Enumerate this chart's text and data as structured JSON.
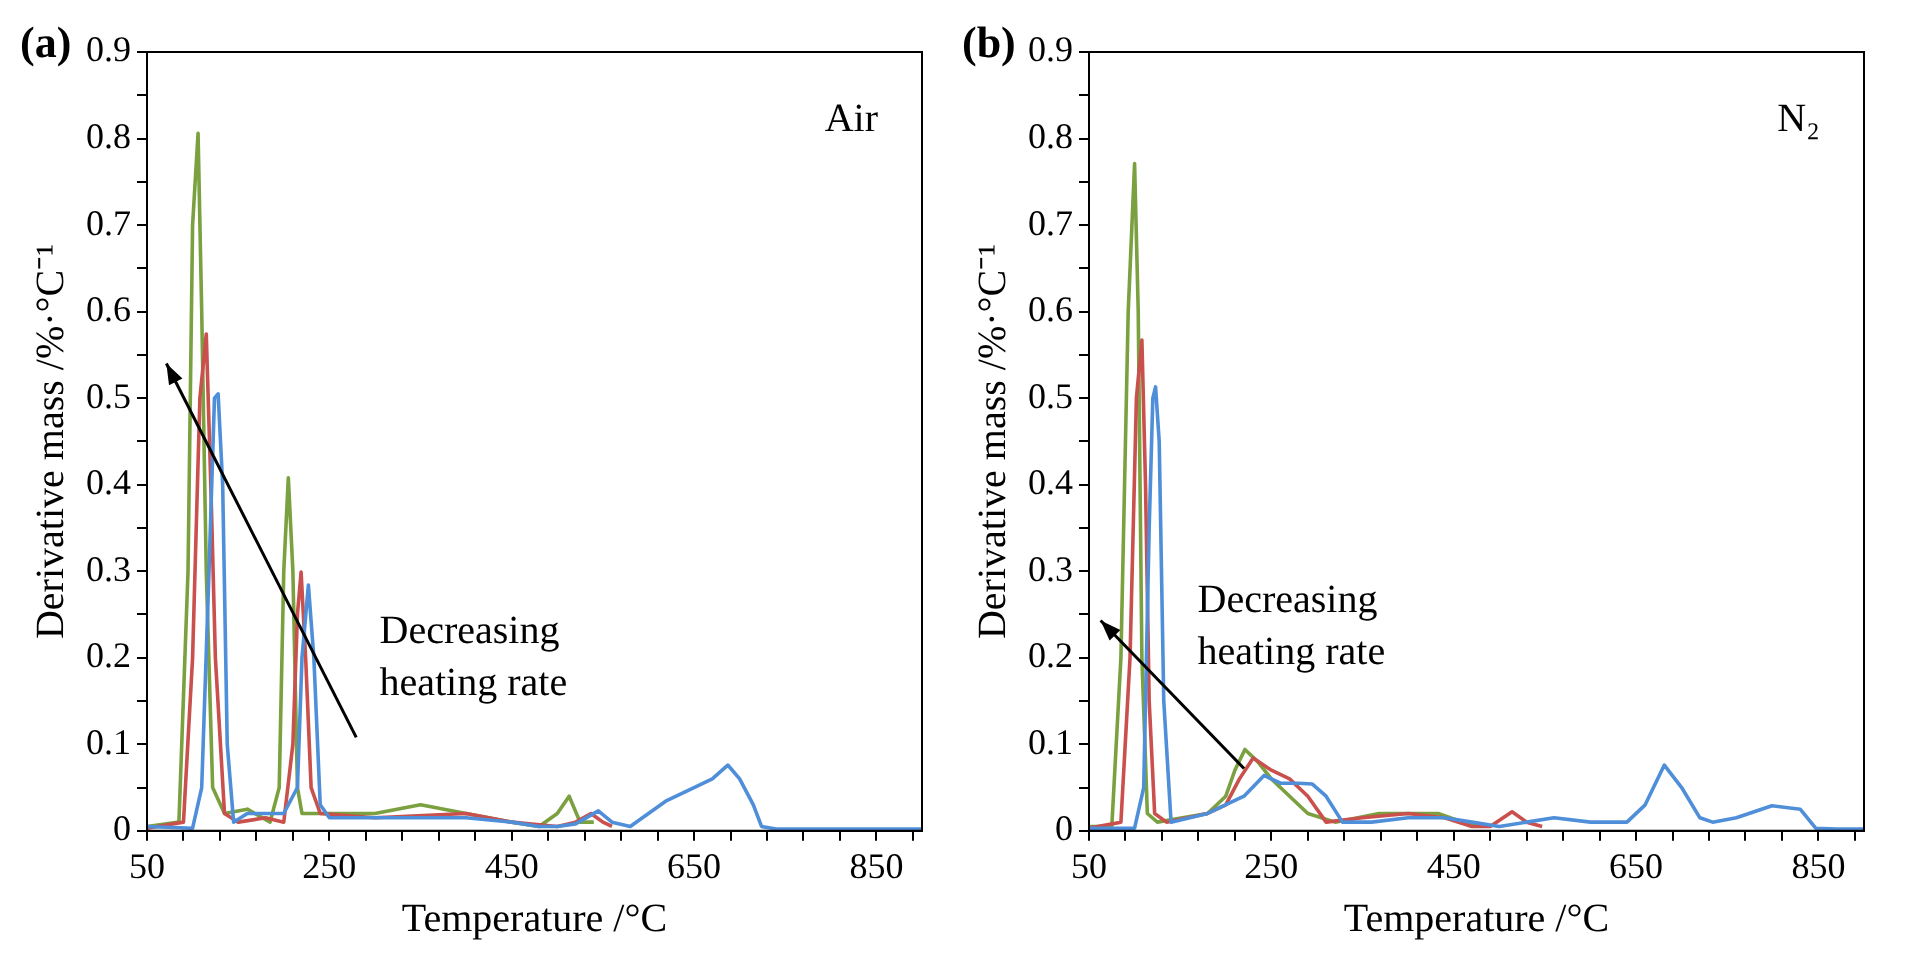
{
  "chart_data": [
    {
      "type": "line",
      "xlabel": "Temperature /°C",
      "ylabel": "Derivative mass /%·°C⁻¹",
      "annotations": [
        "(a)",
        "Air",
        "Decreasing heating rate"
      ],
      "xlim": [
        50,
        900
      ],
      "xticks": [
        50,
        {
          "value": 90,
          "label": null
        },
        {
          "value": 130,
          "label": null
        },
        {
          "value": 170,
          "label": null
        },
        {
          "value": 210,
          "label": null
        },
        250,
        {
          "value": 290,
          "label": null
        },
        {
          "value": 330,
          "label": null
        },
        {
          "value": 370,
          "label": null
        },
        {
          "value": 410,
          "label": null
        },
        450,
        {
          "value": 490,
          "label": null
        },
        {
          "value": 530,
          "label": null
        },
        {
          "value": 570,
          "label": null
        },
        {
          "value": 610,
          "label": null
        },
        650,
        {
          "value": 690,
          "label": null
        },
        {
          "value": 730,
          "label": null
        },
        {
          "value": 770,
          "label": null
        },
        {
          "value": 810,
          "label": null
        },
        850,
        {
          "value": 890,
          "label": null
        }
      ],
      "ylim": [
        0,
        0.9
      ],
      "yticks": [
        0,
        {
          "value": 0.05,
          "label": null
        },
        0.1,
        {
          "value": 0.15,
          "label": null
        },
        0.2,
        {
          "value": 0.25,
          "label": null
        },
        0.3,
        {
          "value": 0.35,
          "label": null
        },
        0.4,
        {
          "value": 0.45,
          "label": null
        },
        0.5,
        {
          "value": 0.55,
          "label": null
        },
        0.6,
        {
          "value": 0.65,
          "label": null
        },
        0.7,
        {
          "value": 0.75,
          "label": null
        },
        0.8,
        {
          "value": 0.85,
          "label": null
        },
        0.9
      ],
      "grid": false,
      "legend": false,
      "marker": "none",
      "line_style": "solid",
      "series": [
        {
          "color": "#4f8fd9",
          "x": [
            50,
            100,
            110,
            118,
            124,
            128,
            133,
            138,
            145,
            160,
            200,
            215,
            220,
            227,
            233,
            240,
            250,
            300,
            400,
            450,
            480,
            500,
            520,
            545,
            560,
            580,
            600,
            620,
            650,
            670,
            687,
            700,
            715,
            724,
            740,
            800,
            900
          ],
          "values": [
            0.005,
            0.003,
            0.05,
            0.3,
            0.5,
            0.505,
            0.4,
            0.1,
            0.01,
            0.02,
            0.02,
            0.05,
            0.2,
            0.284,
            0.2,
            0.03,
            0.015,
            0.015,
            0.015,
            0.01,
            0.005,
            0.005,
            0.008,
            0.023,
            0.01,
            0.005,
            0.02,
            0.035,
            0.05,
            0.06,
            0.076,
            0.06,
            0.03,
            0.005,
            0.002,
            0.002,
            0.002
          ]
        },
        {
          "color": "#c9504d",
          "x": [
            50,
            90,
            100,
            108,
            115,
            120,
            125,
            135,
            150,
            180,
            200,
            210,
            215,
            219,
            224,
            230,
            240,
            300,
            400,
            450,
            500,
            520,
            537,
            550,
            560
          ],
          "values": [
            0.003,
            0.01,
            0.2,
            0.5,
            0.574,
            0.4,
            0.2,
            0.02,
            0.01,
            0.015,
            0.01,
            0.1,
            0.25,
            0.299,
            0.2,
            0.05,
            0.02,
            0.015,
            0.02,
            0.01,
            0.005,
            0.01,
            0.02,
            0.01,
            0.005
          ]
        },
        {
          "color": "#7aa03f",
          "x": [
            50,
            85,
            95,
            100,
            106,
            110,
            115,
            122,
            135,
            160,
            185,
            195,
            200,
            205,
            210,
            215,
            220,
            250,
            300,
            350,
            400,
            450,
            480,
            500,
            513,
            525,
            540
          ],
          "values": [
            0.005,
            0.01,
            0.3,
            0.7,
            0.806,
            0.6,
            0.3,
            0.05,
            0.02,
            0.025,
            0.01,
            0.05,
            0.3,
            0.408,
            0.3,
            0.05,
            0.02,
            0.02,
            0.02,
            0.03,
            0.02,
            0.01,
            0.005,
            0.02,
            0.04,
            0.01,
            0.01
          ]
        }
      ]
    },
    {
      "type": "line",
      "xlabel": "Temperature /°C",
      "ylabel": "Derivative mass /%·°C⁻¹",
      "annotations": [
        "(b)",
        "N₂",
        "Decreasing heating rate"
      ],
      "xlim": [
        50,
        900
      ],
      "xticks": [
        50,
        {
          "value": 90,
          "label": null
        },
        {
          "value": 130,
          "label": null
        },
        {
          "value": 170,
          "label": null
        },
        {
          "value": 210,
          "label": null
        },
        250,
        {
          "value": 290,
          "label": null
        },
        {
          "value": 330,
          "label": null
        },
        {
          "value": 370,
          "label": null
        },
        {
          "value": 410,
          "label": null
        },
        450,
        {
          "value": 490,
          "label": null
        },
        {
          "value": 530,
          "label": null
        },
        {
          "value": 570,
          "label": null
        },
        {
          "value": 610,
          "label": null
        },
        650,
        {
          "value": 690,
          "label": null
        },
        {
          "value": 730,
          "label": null
        },
        {
          "value": 770,
          "label": null
        },
        {
          "value": 810,
          "label": null
        },
        850,
        {
          "value": 890,
          "label": null
        }
      ],
      "ylim": [
        0,
        0.9
      ],
      "yticks": [
        0,
        {
          "value": 0.05,
          "label": null
        },
        0.1,
        {
          "value": 0.15,
          "label": null
        },
        0.2,
        {
          "value": 0.25,
          "label": null
        },
        0.3,
        {
          "value": 0.35,
          "label": null
        },
        0.4,
        {
          "value": 0.45,
          "label": null
        },
        0.5,
        {
          "value": 0.55,
          "label": null
        },
        0.6,
        {
          "value": 0.65,
          "label": null
        },
        0.7,
        {
          "value": 0.75,
          "label": null
        },
        0.8,
        {
          "value": 0.85,
          "label": null
        },
        0.9
      ],
      "grid": false,
      "legend": false,
      "marker": "none",
      "line_style": "solid",
      "series": [
        {
          "color": "#4f8fd9",
          "x": [
            50,
            100,
            110,
            116,
            120,
            123,
            127,
            132,
            140,
            180,
            220,
            242,
            260,
            280,
            295,
            310,
            328,
            360,
            400,
            440,
            470,
            500,
            530,
            560,
            600,
            640,
            660,
            681,
            700,
            720,
            734,
            760,
            799,
            830,
            847,
            870,
            900
          ],
          "values": [
            0.003,
            0.003,
            0.05,
            0.35,
            0.5,
            0.513,
            0.45,
            0.15,
            0.01,
            0.02,
            0.04,
            0.064,
            0.055,
            0.055,
            0.054,
            0.04,
            0.01,
            0.01,
            0.015,
            0.015,
            0.01,
            0.005,
            0.01,
            0.015,
            0.01,
            0.01,
            0.03,
            0.076,
            0.05,
            0.015,
            0.01,
            0.015,
            0.029,
            0.025,
            0.003,
            0.002,
            0.002
          ]
        },
        {
          "color": "#c9504d",
          "x": [
            50,
            85,
            95,
            102,
            108,
            112,
            116,
            122,
            135,
            180,
            200,
            215,
            230,
            250,
            270,
            290,
            310,
            350,
            400,
            440,
            470,
            490,
            514,
            530,
            547
          ],
          "values": [
            0.003,
            0.01,
            0.2,
            0.5,
            0.567,
            0.4,
            0.15,
            0.02,
            0.01,
            0.02,
            0.03,
            0.06,
            0.084,
            0.07,
            0.06,
            0.04,
            0.01,
            0.015,
            0.02,
            0.015,
            0.005,
            0.005,
            0.022,
            0.01,
            0.005
          ]
        },
        {
          "color": "#7aa03f",
          "x": [
            50,
            75,
            85,
            93,
            100,
            104,
            108,
            114,
            125,
            180,
            200,
            210,
            221,
            235,
            250,
            270,
            290,
            320,
            368,
            400,
            433,
            460,
            480
          ],
          "values": [
            0.005,
            0.005,
            0.2,
            0.6,
            0.771,
            0.6,
            0.2,
            0.02,
            0.01,
            0.02,
            0.04,
            0.07,
            0.094,
            0.08,
            0.06,
            0.04,
            0.02,
            0.01,
            0.02,
            0.02,
            0.02,
            0.01,
            0.005
          ]
        }
      ]
    }
  ]
}
